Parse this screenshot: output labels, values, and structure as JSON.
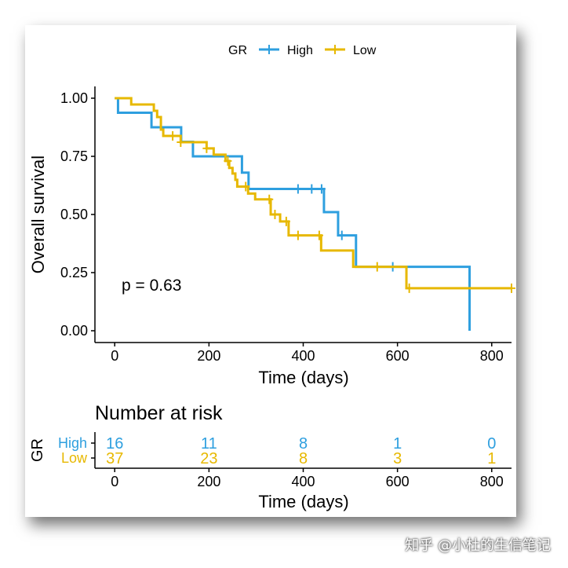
{
  "watermark": "知乎 @小杜的生信笔记",
  "chart_data": {
    "type": "line",
    "subtype": "kaplan-meier step",
    "legend": {
      "title": "GR",
      "position": "top",
      "entries": [
        "High",
        "Low"
      ]
    },
    "xlabel": "Time (days)",
    "ylabel": "Overall survival",
    "xlim": [
      -42,
      842
    ],
    "ylim": [
      0,
      1
    ],
    "xticks": [
      0,
      200,
      400,
      600,
      800
    ],
    "xtick_labels": [
      "0",
      "200",
      "400",
      "600",
      "800"
    ],
    "yticks": [
      0,
      0.25,
      0.5,
      0.75,
      1
    ],
    "ytick_labels": [
      "0.00",
      "0.25",
      "0.50",
      "0.75",
      "1.00"
    ],
    "annotation": "p = 0.63",
    "grid": false,
    "series": [
      {
        "name": "High",
        "color": "#2E9FDF",
        "time": [
          0,
          7,
          78,
          141,
          166,
          270,
          284,
          444,
          474,
          512,
          753
        ],
        "survival": [
          1.0,
          0.9375,
          0.875,
          0.8125,
          0.75,
          0.68,
          0.61,
          0.51,
          0.41,
          0.275,
          0.0
        ],
        "censor_times": [
          389,
          418,
          439,
          482,
          590
        ],
        "end_time": 753
      },
      {
        "name": "Low",
        "color": "#E7B800",
        "time": [
          0,
          35,
          83,
          90,
          98,
          103,
          140,
          195,
          210,
          235,
          243,
          250,
          256,
          260,
          283,
          298,
          331,
          351,
          369,
          438,
          506,
          619
        ],
        "survival": [
          1.0,
          0.973,
          0.946,
          0.919,
          0.865,
          0.838,
          0.811,
          0.784,
          0.757,
          0.73,
          0.7,
          0.676,
          0.649,
          0.62,
          0.59,
          0.565,
          0.5,
          0.47,
          0.41,
          0.345,
          0.275,
          0.183
        ],
        "censor_times": [
          123,
          140,
          195,
          240,
          278,
          328,
          340,
          364,
          389,
          434,
          557,
          625,
          842
        ],
        "end_time": 842
      }
    ]
  },
  "risk_table": {
    "title": "Number at risk",
    "ylabel": "GR",
    "xlabel": "Time (days)",
    "times": [
      0,
      200,
      400,
      600,
      800
    ],
    "xtick_labels": [
      "0",
      "200",
      "400",
      "600",
      "800"
    ],
    "rows": [
      {
        "name": "High",
        "color": "#2E9FDF",
        "values": [
          "16",
          "11",
          "8",
          "1",
          "0"
        ]
      },
      {
        "name": "Low",
        "color": "#E7B800",
        "values": [
          "37",
          "23",
          "8",
          "3",
          "1"
        ]
      }
    ]
  }
}
